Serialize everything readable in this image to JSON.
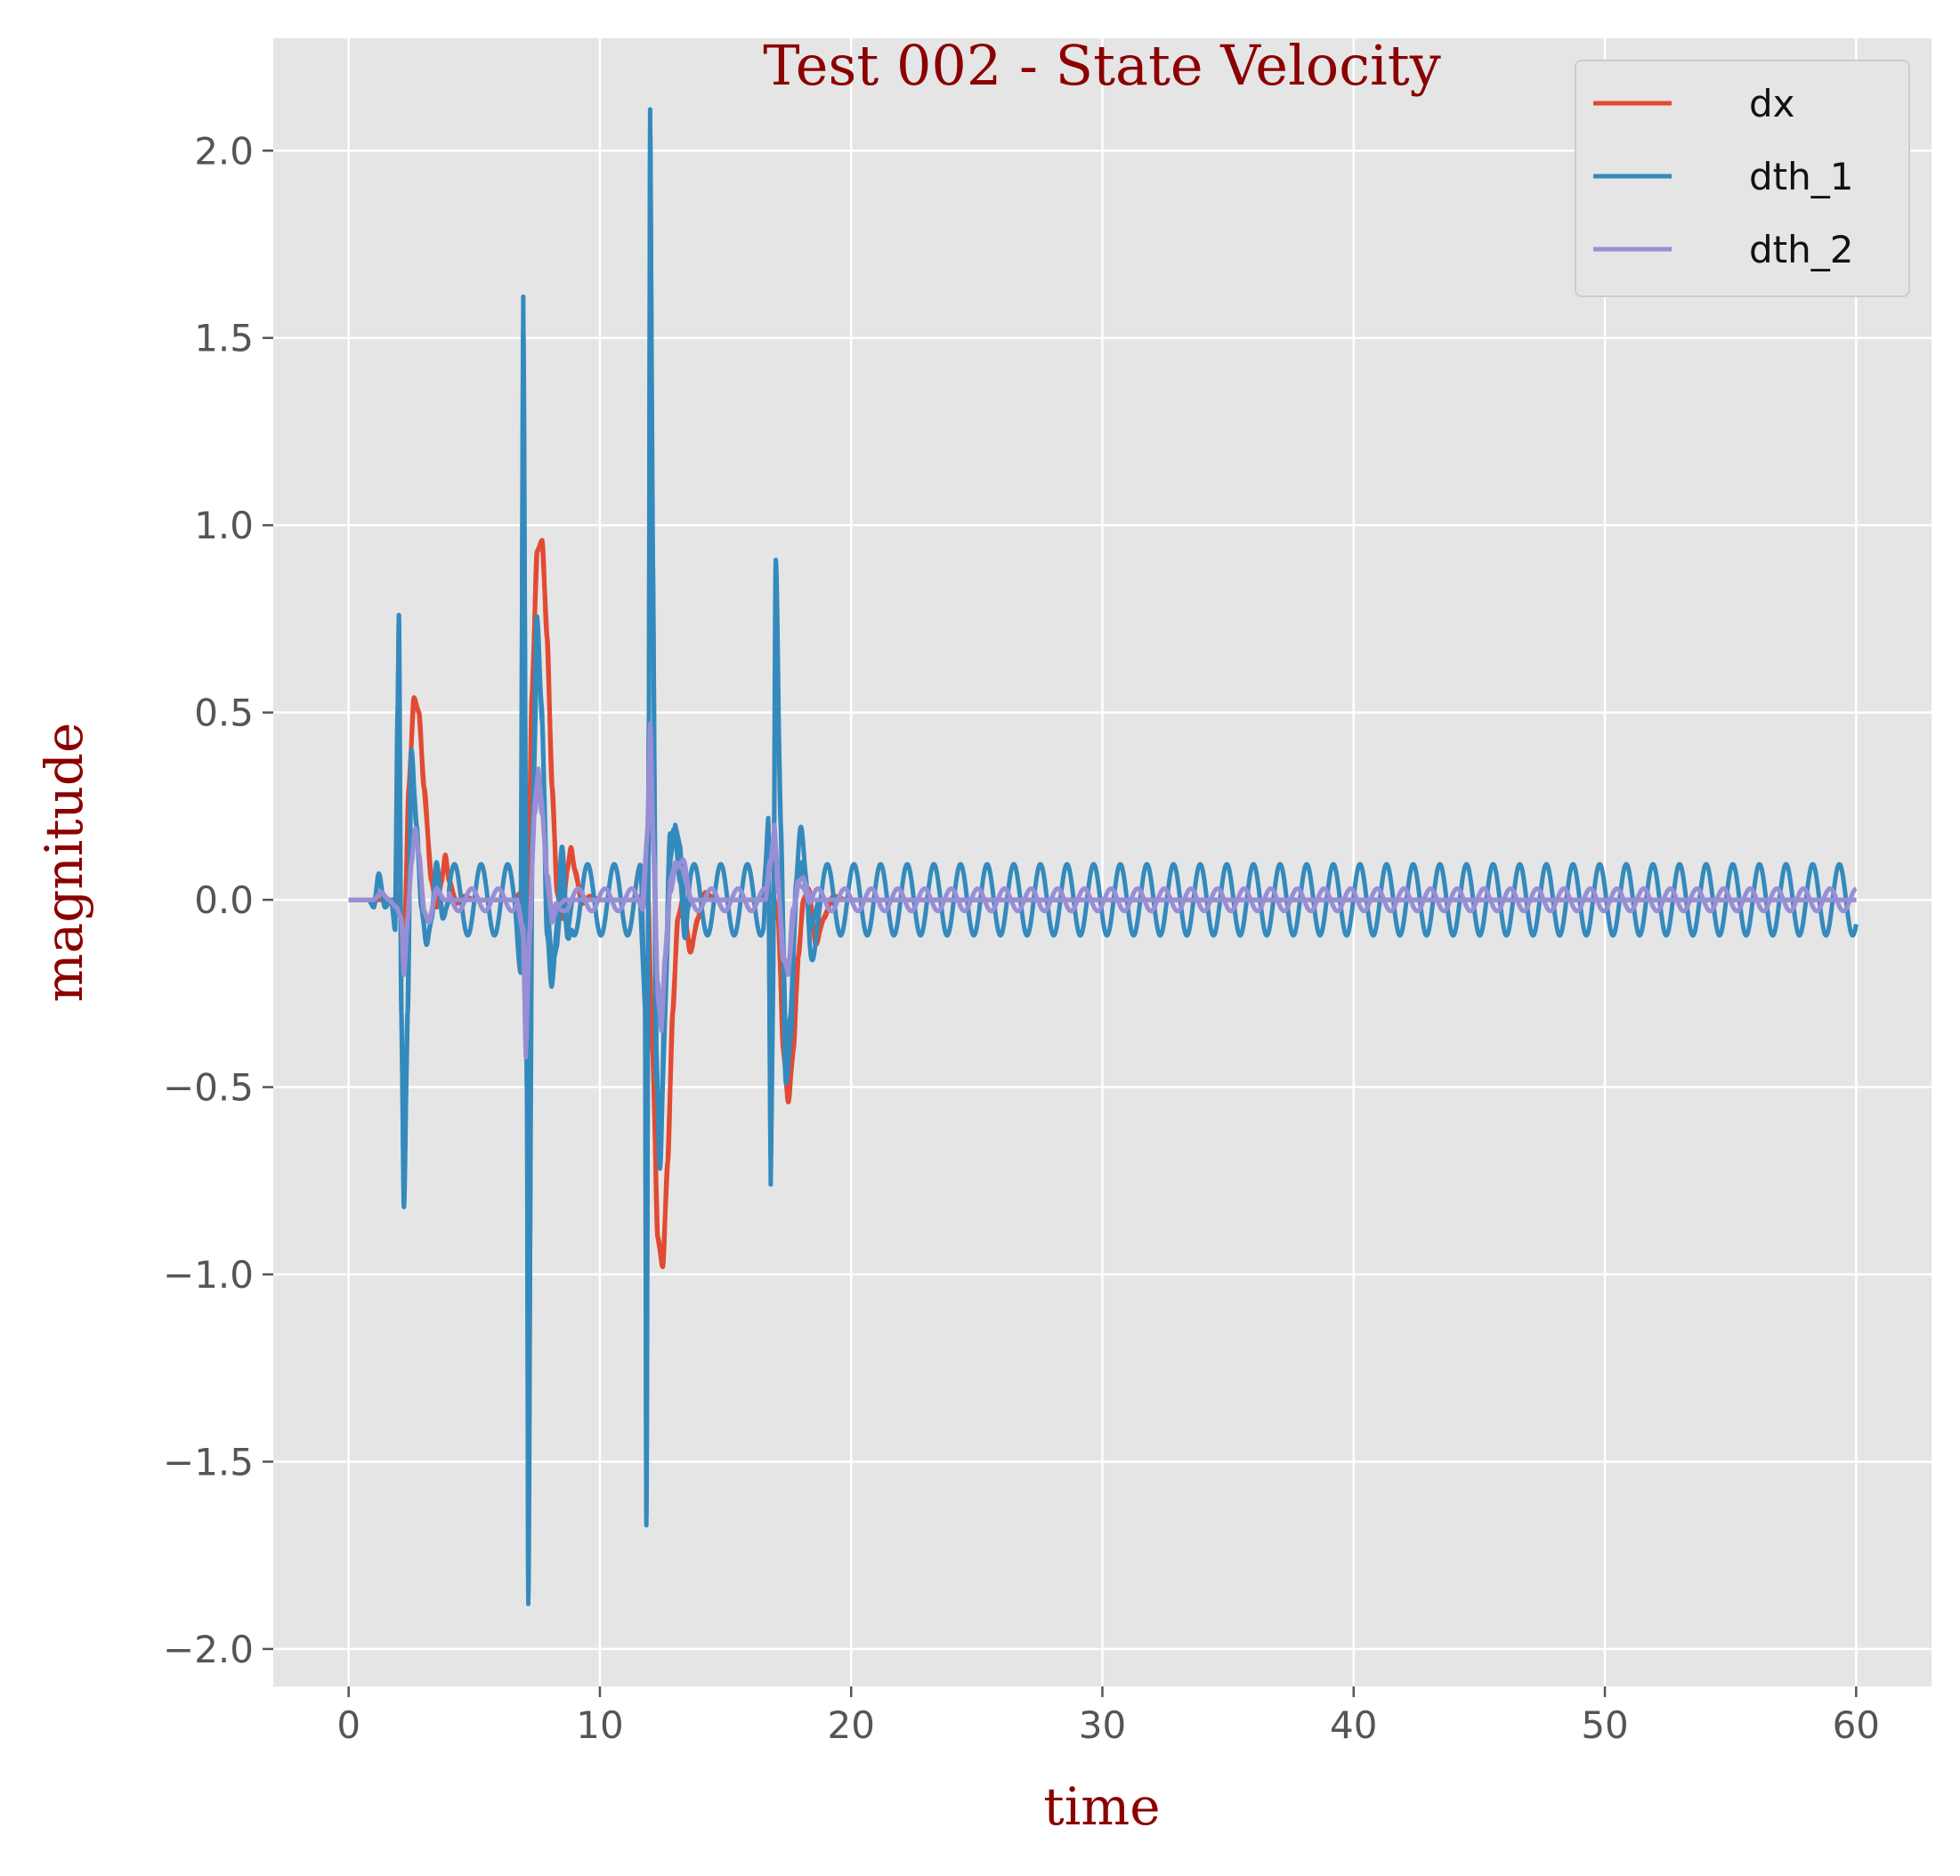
{
  "chart_data": {
    "type": "line",
    "title": "Test 002 - State Velocity",
    "xlabel": "time",
    "ylabel": "magnitude",
    "xlim": [
      -3,
      63
    ],
    "ylim": [
      -2.1,
      2.3
    ],
    "xticks": [
      0,
      10,
      20,
      30,
      40,
      50,
      60
    ],
    "xtick_labels": [
      "0",
      "10",
      "20",
      "30",
      "40",
      "50",
      "60"
    ],
    "yticks": [
      -2.0,
      -1.5,
      -1.0,
      -0.5,
      0.0,
      0.5,
      1.0,
      1.5,
      2.0
    ],
    "ytick_labels": [
      "−2.0",
      "−1.5",
      "−1.0",
      "−0.5",
      "0.0",
      "0.5",
      "1.0",
      "1.5",
      "2.0"
    ],
    "grid": true,
    "legend_position": "top-right",
    "colors": {
      "background": "#e5e5e5",
      "grid": "#ffffff",
      "title": "#8b0000"
    },
    "series": [
      {
        "name": "dx",
        "color": "#e24a33",
        "points": [
          [
            0,
            0
          ],
          [
            1.0,
            0
          ],
          [
            1.8,
            0.0
          ],
          [
            2.0,
            0.02
          ],
          [
            2.2,
            -0.15
          ],
          [
            2.4,
            0.3
          ],
          [
            2.6,
            0.54
          ],
          [
            2.8,
            0.5
          ],
          [
            3.0,
            0.3
          ],
          [
            3.3,
            0.05
          ],
          [
            3.5,
            -0.02
          ],
          [
            3.7,
            0.05
          ],
          [
            3.85,
            0.12
          ],
          [
            4.0,
            0.05
          ],
          [
            4.3,
            -0.01
          ],
          [
            4.6,
            0.01
          ],
          [
            5.0,
            0
          ],
          [
            6.5,
            0
          ],
          [
            6.9,
            0.02
          ],
          [
            7.1,
            -0.2
          ],
          [
            7.3,
            0.55
          ],
          [
            7.5,
            0.93
          ],
          [
            7.7,
            0.96
          ],
          [
            7.9,
            0.7
          ],
          [
            8.1,
            0.3
          ],
          [
            8.3,
            0.02
          ],
          [
            8.5,
            -0.05
          ],
          [
            8.7,
            0.08
          ],
          [
            8.85,
            0.14
          ],
          [
            9.0,
            0.08
          ],
          [
            9.3,
            -0.01
          ],
          [
            9.6,
            0.01
          ],
          [
            10.0,
            0
          ],
          [
            11.5,
            0
          ],
          [
            11.9,
            0.03
          ],
          [
            12.1,
            -0.4
          ],
          [
            12.3,
            -0.9
          ],
          [
            12.5,
            -0.98
          ],
          [
            12.7,
            -0.7
          ],
          [
            12.9,
            -0.3
          ],
          [
            13.1,
            -0.05
          ],
          [
            13.3,
            0.0
          ],
          [
            13.6,
            -0.14
          ],
          [
            13.9,
            -0.05
          ],
          [
            14.2,
            0.02
          ],
          [
            14.6,
            0
          ],
          [
            16.5,
            0
          ],
          [
            16.9,
            0.01
          ],
          [
            17.1,
            -0.05
          ],
          [
            17.3,
            -0.4
          ],
          [
            17.5,
            -0.54
          ],
          [
            17.7,
            -0.4
          ],
          [
            17.9,
            -0.15
          ],
          [
            18.1,
            0.0
          ],
          [
            18.3,
            0.03
          ],
          [
            18.6,
            -0.12
          ],
          [
            18.9,
            -0.05
          ],
          [
            19.3,
            0.01
          ],
          [
            19.8,
            0
          ],
          [
            60,
            0
          ]
        ]
      },
      {
        "name": "dth_1",
        "color": "#348abd",
        "osc": {
          "start": 4.0,
          "end": 60.0,
          "period": 1.06,
          "amplitude": 0.095,
          "phase": 0.05
        },
        "points": [
          [
            0,
            0
          ],
          [
            0.8,
            0
          ],
          [
            1.0,
            -0.02
          ],
          [
            1.2,
            0.07
          ],
          [
            1.45,
            -0.02
          ],
          [
            1.7,
            0.0
          ],
          [
            1.85,
            -0.08
          ],
          [
            1.95,
            0.5
          ],
          [
            2.0,
            0.76
          ],
          [
            2.1,
            -0.3
          ],
          [
            2.2,
            -0.82
          ],
          [
            2.35,
            -0.3
          ],
          [
            2.5,
            0.4
          ],
          [
            2.7,
            0.2
          ],
          [
            2.9,
            -0.02
          ],
          [
            3.1,
            -0.12
          ],
          [
            3.3,
            -0.05
          ],
          [
            3.5,
            0.1
          ],
          [
            3.75,
            -0.05
          ],
          [
            4.0,
            0.0
          ],
          [
            6.6,
            0.0
          ],
          [
            6.85,
            -0.1
          ],
          [
            6.95,
            1.61
          ],
          [
            7.1,
            -0.5
          ],
          [
            7.15,
            -1.88
          ],
          [
            7.3,
            0.1
          ],
          [
            7.5,
            0.68
          ],
          [
            7.7,
            0.5
          ],
          [
            7.9,
            0.0
          ],
          [
            8.1,
            -0.18
          ],
          [
            8.3,
            -0.12
          ],
          [
            8.5,
            0.05
          ],
          [
            8.7,
            -0.1
          ],
          [
            8.9,
            0.0
          ],
          [
            11.6,
            0.0
          ],
          [
            11.8,
            -0.3
          ],
          [
            11.85,
            -1.67
          ],
          [
            11.95,
            0.5
          ],
          [
            12.0,
            2.11
          ],
          [
            12.1,
            1.0
          ],
          [
            12.25,
            -0.4
          ],
          [
            12.4,
            -0.7
          ],
          [
            12.6,
            -0.3
          ],
          [
            12.8,
            0.1
          ],
          [
            13.0,
            0.2
          ],
          [
            13.2,
            0.14
          ],
          [
            13.4,
            -0.05
          ],
          [
            13.6,
            0.0
          ],
          [
            16.5,
            0.0
          ],
          [
            16.7,
            0.2
          ],
          [
            16.8,
            -0.76
          ],
          [
            16.9,
            -0.2
          ],
          [
            17.0,
            0.82
          ],
          [
            17.2,
            0.2
          ],
          [
            17.4,
            -0.4
          ],
          [
            17.6,
            -0.3
          ],
          [
            17.8,
            0.0
          ],
          [
            18.0,
            0.1
          ],
          [
            18.2,
            0.03
          ],
          [
            18.4,
            -0.08
          ],
          [
            18.7,
            0.0
          ],
          [
            60,
            0
          ]
        ]
      },
      {
        "name": "dth_2",
        "color": "#988ed5",
        "osc": {
          "start": 4.0,
          "end": 60.0,
          "period": 1.06,
          "amplitude": 0.03,
          "phase": 0.4
        },
        "points": [
          [
            0,
            0
          ],
          [
            1.0,
            0
          ],
          [
            1.3,
            0.02
          ],
          [
            1.6,
            0.0
          ],
          [
            1.9,
            -0.02
          ],
          [
            2.1,
            -0.05
          ],
          [
            2.2,
            -0.2
          ],
          [
            2.35,
            -0.05
          ],
          [
            2.5,
            0.1
          ],
          [
            2.65,
            0.19
          ],
          [
            2.8,
            0.12
          ],
          [
            3.0,
            -0.03
          ],
          [
            3.2,
            -0.06
          ],
          [
            3.5,
            0.03
          ],
          [
            3.8,
            0.0
          ],
          [
            4.0,
            0.0
          ],
          [
            6.7,
            0.0
          ],
          [
            6.95,
            -0.1
          ],
          [
            7.05,
            -0.42
          ],
          [
            7.2,
            -0.1
          ],
          [
            7.4,
            0.25
          ],
          [
            7.55,
            0.35
          ],
          [
            7.7,
            0.25
          ],
          [
            7.9,
            0.05
          ],
          [
            8.1,
            -0.06
          ],
          [
            8.3,
            -0.02
          ],
          [
            8.6,
            0.0
          ],
          [
            11.7,
            0.0
          ],
          [
            11.9,
            0.2
          ],
          [
            12.0,
            0.47
          ],
          [
            12.15,
            0.1
          ],
          [
            12.3,
            -0.25
          ],
          [
            12.45,
            -0.35
          ],
          [
            12.6,
            -0.15
          ],
          [
            12.8,
            0.05
          ],
          [
            13.0,
            0.1
          ],
          [
            13.3,
            0.08
          ],
          [
            13.6,
            0.0
          ],
          [
            16.6,
            0.0
          ],
          [
            16.8,
            0.1
          ],
          [
            16.95,
            0.2
          ],
          [
            17.1,
            0.05
          ],
          [
            17.3,
            -0.15
          ],
          [
            17.5,
            -0.2
          ],
          [
            17.7,
            -0.05
          ],
          [
            17.9,
            0.05
          ],
          [
            18.1,
            0.06
          ],
          [
            18.4,
            0.0
          ],
          [
            60,
            0
          ]
        ]
      }
    ]
  }
}
